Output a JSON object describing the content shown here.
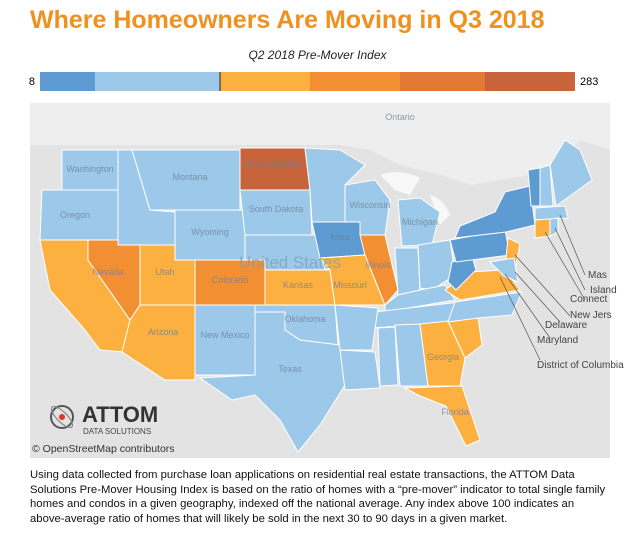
{
  "header": {
    "title": "Where Homeowners Are Moving in Q3 2018"
  },
  "legend": {
    "title": "Q2 2018 Pre-Mover Index",
    "min": 8,
    "max": 283,
    "colors": [
      "#5f9bd3",
      "#9cc8ea",
      "#fbb040",
      "#f28f32",
      "#e27a35",
      "#c8643c"
    ]
  },
  "map": {
    "labels": [
      "Ontario",
      "Washington",
      "Oregon",
      "Montana",
      "North Dakota",
      "South Dakota",
      "Wyoming",
      "Nevada",
      "Utah",
      "Colorado",
      "Kansas",
      "Arizona",
      "New Mexico",
      "Texas",
      "Oklahoma",
      "Iowa",
      "Illinois",
      "Missouri",
      "Wisconsin",
      "Michigan",
      "United States",
      "Georgia",
      "Florida"
    ],
    "callouts": [
      "Mas",
      "Island",
      "Connect",
      "New Jers",
      "Delaware",
      "Maryland",
      "District of Columbia"
    ],
    "attribution": "© OpenStreetMap contributors"
  },
  "logo": {
    "name": "ATTOM",
    "tagline": "DATA SOLUTIONS"
  },
  "description": "Using data collected from purchase loan applications on residential real estate transactions, the ATTOM Data Solutions Pre-Mover Housing Index is based on the ratio of homes with a “pre-mover” indicator to total single family homes and condos in a given geography, indexed off the national average. Any index above 100 indicates an above-average ratio of homes that will likely be sold in the next 30 to 90 days in a given market."
}
